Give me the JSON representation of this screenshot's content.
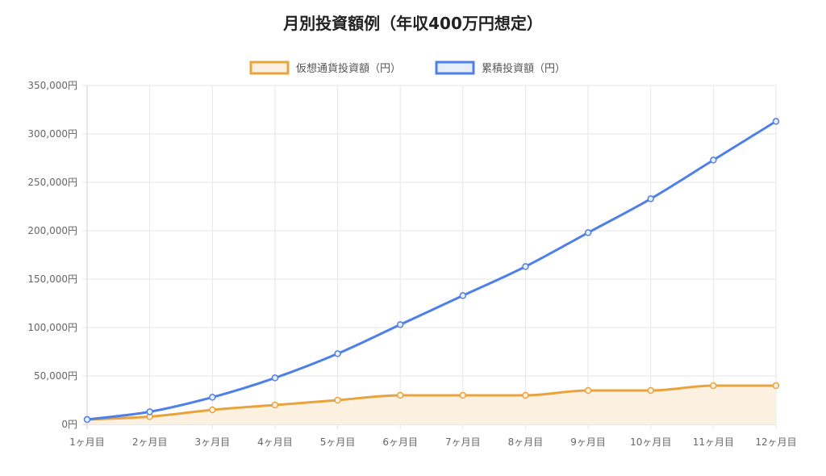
{
  "chart_data": {
    "type": "line",
    "title": "月別投資額例（年収400万円想定）",
    "categories": [
      "1ヶ月目",
      "2ヶ月目",
      "3ヶ月目",
      "4ヶ月目",
      "5ヶ月目",
      "6ヶ月目",
      "7ヶ月目",
      "8ヶ月目",
      "9ヶ月目",
      "10ヶ月目",
      "11ヶ月目",
      "12ヶ月目"
    ],
    "ylim": [
      0,
      350000
    ],
    "yticks": [
      "0円",
      "50,000円",
      "100,000円",
      "150,000円",
      "200,000円",
      "250,000円",
      "300,000円",
      "350,000円"
    ],
    "grid": true,
    "legend_position": "top-center",
    "series": [
      {
        "name": "仮想通貨投資額（円）",
        "color": "#e8a33d",
        "fill": "#fcf0e1",
        "filled": true,
        "values": [
          5000,
          8000,
          15000,
          20000,
          25000,
          30000,
          30000,
          30000,
          35000,
          35000,
          40000,
          40000
        ]
      },
      {
        "name": "累積投資額（円）",
        "color": "#4f7fe8",
        "fill": "#e6edfb",
        "filled": false,
        "values": [
          5000,
          13000,
          28000,
          48000,
          73000,
          103000,
          133000,
          163000,
          198000,
          233000,
          273000,
          313000
        ]
      }
    ]
  }
}
